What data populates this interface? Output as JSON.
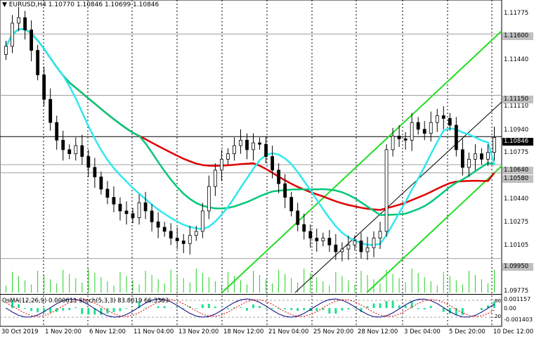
{
  "header": {
    "arrow": "▼",
    "symbol": "EURUSD,H4",
    "ohlc": "1.10770 1.10846 1.10699 1.10846"
  },
  "price_axis": {
    "ticks": [
      "1.11775",
      "1.11440",
      "1.11110",
      "1.10940",
      "1.10775",
      "1.10440",
      "1.10275",
      "1.10105",
      "1.09775"
    ],
    "levels": [
      {
        "value": "1.11600",
        "style": "gray"
      },
      {
        "value": "1.11150",
        "style": "gray"
      },
      {
        "value": "1.10846",
        "style": "current"
      },
      {
        "value": "1.10640",
        "style": "gray"
      },
      {
        "value": "1.10580",
        "style": "gray"
      },
      {
        "value": "1.09950",
        "style": "gray"
      }
    ]
  },
  "time_axis": {
    "labels": [
      "30 Oct 2019",
      "1 Nov 20:00",
      "6 Nov 12:00",
      "11 Nov 04:00",
      "13 Nov 20:00",
      "18 Nov 12:00",
      "21 Nov 04:00",
      "25 Nov 20:00",
      "28 Nov 12:00",
      "3 Dec 04:00",
      "5 Dec 20:00",
      "10 Dec 12:00"
    ]
  },
  "oscillator": {
    "title": "OsMA(12,26,9) 0.000611  Stoch(5,3,3) 83.8019 66.3363",
    "scale": [
      "0.001157",
      "0.00",
      "-0.001403"
    ],
    "stoch_levels": [
      "80",
      "20"
    ]
  },
  "colors": {
    "bull_candle": "#ffffff",
    "bear_candle": "#000000",
    "ma_red": "#e00000",
    "ma_green": "#00c878",
    "ma_cyan": "#2fe8f0",
    "channel": "#22dd22",
    "osma": "#20e090",
    "stoch_main": "#000080",
    "stoch_signal": "#e00000"
  },
  "chart_data": {
    "type": "candlestick",
    "symbol": "EURUSD",
    "timeframe": "H4",
    "close": [
      1.1151,
      1.1168,
      1.1172,
      1.1163,
      1.1148,
      1.113,
      1.1112,
      1.1095,
      1.1082,
      1.1075,
      1.1072,
      1.1078,
      1.107,
      1.1062,
      1.1055,
      1.1046,
      1.104,
      1.1035,
      1.103,
      1.1028,
      1.1025,
      1.1036,
      1.103,
      1.1022,
      1.1018,
      1.1015,
      1.101,
      1.1008,
      1.1006,
      1.1012,
      1.1015,
      1.103,
      1.1048,
      1.106,
      1.1068,
      1.1072,
      1.1078,
      1.1082,
      1.1075,
      1.108,
      1.1079,
      1.107,
      1.106,
      1.105,
      1.104,
      1.103,
      1.102,
      1.1015,
      1.101,
      1.1008,
      1.101,
      1.1005,
      1.1,
      1.1002,
      1.1005,
      1.1008,
      1.1,
      1.1003,
      1.101,
      1.1015,
      1.1075,
      1.1085,
      1.1083,
      1.1082,
      1.1095,
      1.109,
      1.1087,
      1.1095,
      1.11,
      1.1098,
      1.1093,
      1.1075,
      1.1062,
      1.1068,
      1.1072,
      1.1068,
      1.1073,
      1.1084
    ],
    "ma_red_end": 1.1058,
    "ma_green_end": 1.1064,
    "ma_cyan_end": 1.1064,
    "ylim": [
      1.097,
      1.1185
    ]
  }
}
